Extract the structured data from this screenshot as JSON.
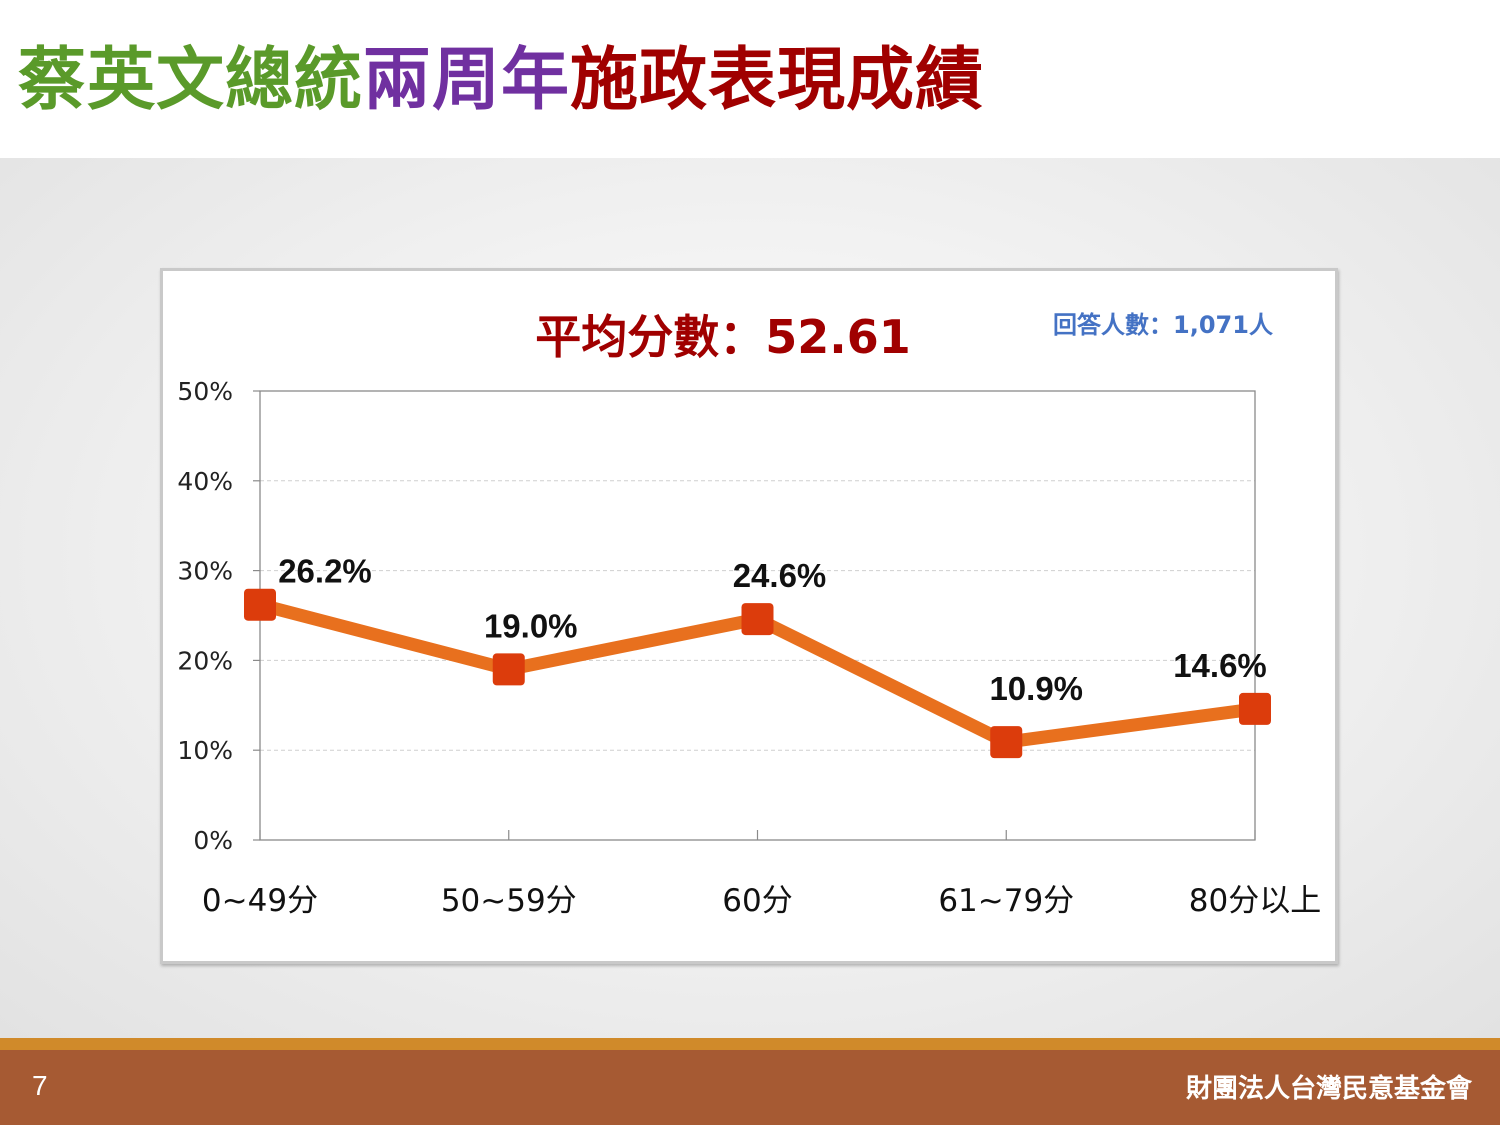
{
  "title": {
    "part1": "蔡英文總統",
    "part2": "兩周年",
    "part3": "施政表現成績",
    "color1": "#5a9a2a",
    "color2": "#7030a0",
    "color3": "#a00000"
  },
  "footer": {
    "page_number": "7",
    "organization": "財團法人台灣民意基金會"
  },
  "colors": {
    "line": "#e8701e",
    "marker": "#dc3c0c",
    "avg_text": "#a00000",
    "respondents_text": "#4472c4"
  },
  "chart_data": {
    "type": "line",
    "title": "平均分數：52.61",
    "subtitle": "回答人數：1,071人",
    "categories": [
      "0~49分",
      "50~59分",
      "60分",
      "61~79分",
      "80分以上"
    ],
    "series": [
      {
        "values": [
          26.2,
          19.0,
          24.6,
          10.9,
          14.6
        ]
      }
    ],
    "data_labels": [
      "26.2%",
      "19.0%",
      "24.6%",
      "10.9%",
      "14.6%"
    ],
    "yticks": [
      "0%",
      "10%",
      "20%",
      "30%",
      "40%",
      "50%"
    ],
    "ylim": [
      0,
      50
    ],
    "xlabel": "",
    "ylabel": "",
    "grid": true,
    "legend": false
  }
}
